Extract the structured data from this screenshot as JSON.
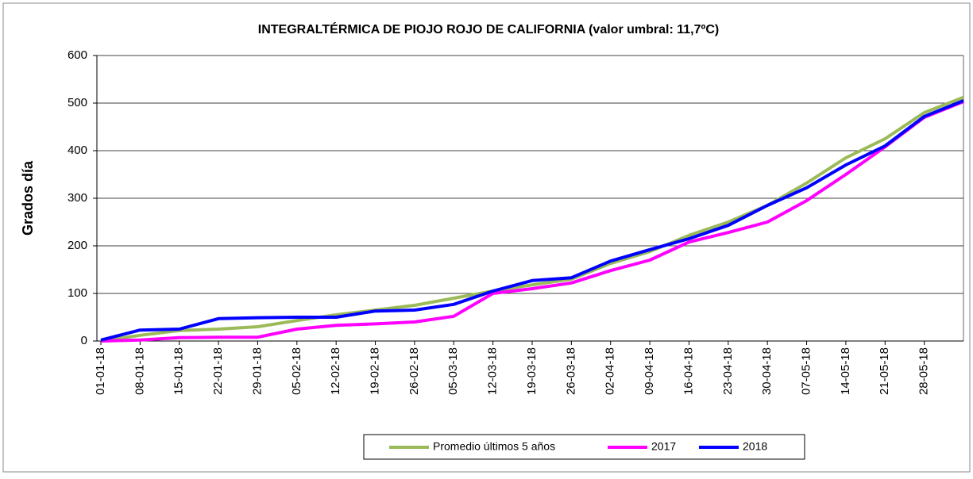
{
  "chart_data": {
    "type": "line",
    "title": "INTEGRALTÉRMICA DE PIOJO ROJO DE CALIFORNIA (valor umbral: 11,7ºC)",
    "y_label": "Grados día",
    "categories": [
      "01-01-18",
      "08-01-18",
      "15-01-18",
      "22-01-18",
      "29-01-18",
      "05-02-18",
      "12-02-18",
      "19-02-18",
      "26-02-18",
      "05-03-18",
      "12-03-18",
      "19-03-18",
      "26-03-18",
      "02-04-18",
      "09-04-18",
      "16-04-18",
      "23-04-18",
      "30-04-18",
      "07-05-18",
      "14-05-18",
      "21-05-18",
      "28-05-18",
      null
    ],
    "series": [
      {
        "name": "Promedio últimos 5 años",
        "color": "#9bbb59",
        "values": [
          0,
          12,
          22,
          25,
          30,
          43,
          55,
          65,
          75,
          90,
          105,
          118,
          130,
          163,
          188,
          222,
          250,
          285,
          332,
          385,
          425,
          480,
          512
        ]
      },
      {
        "name": "2017",
        "color": "#ff00ff",
        "values": [
          0,
          2,
          7,
          8,
          8,
          25,
          33,
          36,
          40,
          52,
          100,
          110,
          122,
          148,
          170,
          208,
          228,
          250,
          295,
          350,
          408,
          470,
          503
        ]
      },
      {
        "name": "2018",
        "color": "#0000ff",
        "values": [
          2,
          23,
          25,
          47,
          49,
          50,
          50,
          63,
          65,
          77,
          105,
          127,
          133,
          168,
          192,
          215,
          243,
          285,
          322,
          370,
          410,
          472,
          505
        ]
      }
    ],
    "ylim": [
      0,
      600
    ],
    "yticks": [
      0,
      100,
      200,
      300,
      400,
      500,
      600
    ],
    "grid": true,
    "legend": "bottom"
  }
}
